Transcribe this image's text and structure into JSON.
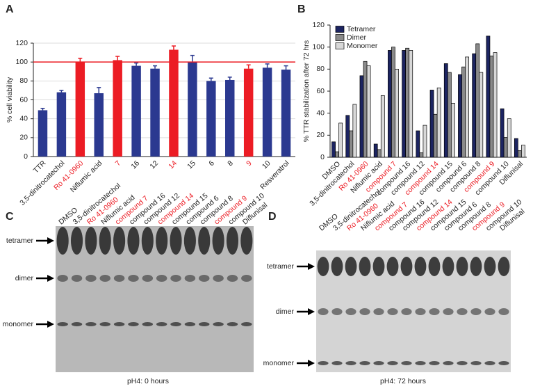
{
  "panel_labels": [
    "A",
    "B",
    "C",
    "D"
  ],
  "chart_data": [
    {
      "type": "bar",
      "ylabel": "% cell viability",
      "categories": [
        "TTR",
        "3,5-dinitrocatechol",
        "Ro 41-0960",
        "Niflumic acid",
        "7",
        "16",
        "12",
        "14",
        "15",
        "6",
        "8",
        "9",
        "10",
        "Resveratrol"
      ],
      "values": [
        49,
        68,
        100,
        67,
        102,
        96,
        93,
        113,
        100,
        80,
        81,
        93,
        94,
        92
      ],
      "errors": [
        2,
        2,
        4,
        6,
        4,
        3,
        3,
        4,
        7,
        3,
        3,
        4,
        4,
        4
      ],
      "colors": [
        "#2b3990",
        "#2b3990",
        "#ec1c24",
        "#2b3990",
        "#ec1c24",
        "#2b3990",
        "#2b3990",
        "#ec1c24",
        "#2b3990",
        "#2b3990",
        "#2b3990",
        "#ec1c24",
        "#2b3990",
        "#2b3990"
      ],
      "label_colors": [
        "#222",
        "#222",
        "#ec1c24",
        "#222",
        "#ec1c24",
        "#222",
        "#222",
        "#ec1c24",
        "#222",
        "#222",
        "#222",
        "#ec1c24",
        "#222",
        "#222"
      ],
      "reference_line": 100,
      "reference_color": "#ec1c24",
      "ylim": [
        0,
        120
      ],
      "yticks": [
        0,
        20,
        40,
        60,
        80,
        100,
        120
      ],
      "grid": true
    },
    {
      "type": "grouped_bar",
      "ylabel": "% TTR stabilization after 72 hrs",
      "categories": [
        "DMSO",
        "3,5-dinitrocatechol",
        "Ro 41-0960",
        "Niflumic acid",
        "compound 7",
        "compound 16",
        "compound 12",
        "compound 14",
        "compound 15",
        "compound 6",
        "compound 8",
        "compound 9",
        "compound 10",
        "Diflunisal"
      ],
      "label_colors": [
        "#222",
        "#222",
        "#ec1c24",
        "#222",
        "#ec1c24",
        "#222",
        "#222",
        "#ec1c24",
        "#222",
        "#222",
        "#222",
        "#ec1c24",
        "#222",
        "#222"
      ],
      "series": [
        {
          "name": "Tetramer",
          "color": "#1c2461",
          "values": [
            14,
            38,
            74,
            12,
            97,
            97,
            24,
            61,
            85,
            75,
            94,
            110,
            44,
            17
          ]
        },
        {
          "name": "Dimer",
          "color": "#8a8a8a",
          "values": [
            5,
            24,
            87,
            7,
            100,
            99,
            4,
            39,
            77,
            82,
            103,
            92,
            18,
            6
          ]
        },
        {
          "name": "Monomer",
          "color": "#d8d8d8",
          "values": [
            31,
            48,
            83,
            56,
            80,
            97,
            29,
            63,
            49,
            91,
            77,
            95,
            35,
            11
          ]
        }
      ],
      "legend": "upper left",
      "ylim": [
        0,
        120
      ],
      "yticks": [
        0,
        20,
        40,
        60,
        80,
        100,
        120
      ]
    }
  ],
  "gels": [
    {
      "lanes": [
        "DMSO",
        "3,5-dinitrocatechol",
        "Ro 41-0960",
        "Niflumic acid",
        "compound 7",
        "compound 16",
        "compound 12",
        "compound 14",
        "compound 15",
        "compound 6",
        "compound 8",
        "compound 9",
        "compound 10",
        "Diflunisal"
      ],
      "lane_label_colors": [
        "#222",
        "#222",
        "#ec1c24",
        "#222",
        "#ec1c24",
        "#222",
        "#222",
        "#ec1c24",
        "#222",
        "#222",
        "#222",
        "#ec1c24",
        "#222",
        "#222"
      ],
      "rows": [
        "tetramer",
        "dimer",
        "monomer"
      ],
      "caption": "pH4: 0 hours"
    },
    {
      "lanes": [
        "DMSO",
        "3,5-dinitrocatechol",
        "Ro 41-0960",
        "Niflumic acid",
        "compound 7",
        "compound 16",
        "compound 12",
        "compound 14",
        "compound 15",
        "compound 6",
        "compound 8",
        "compound 9",
        "compound 10",
        "Diflunisal"
      ],
      "lane_label_colors": [
        "#222",
        "#222",
        "#ec1c24",
        "#222",
        "#ec1c24",
        "#222",
        "#222",
        "#ec1c24",
        "#222",
        "#222",
        "#222",
        "#ec1c24",
        "#222",
        "#222"
      ],
      "rows": [
        "tetramer",
        "dimer",
        "monomer"
      ],
      "caption": "pH4: 72 hours"
    }
  ]
}
